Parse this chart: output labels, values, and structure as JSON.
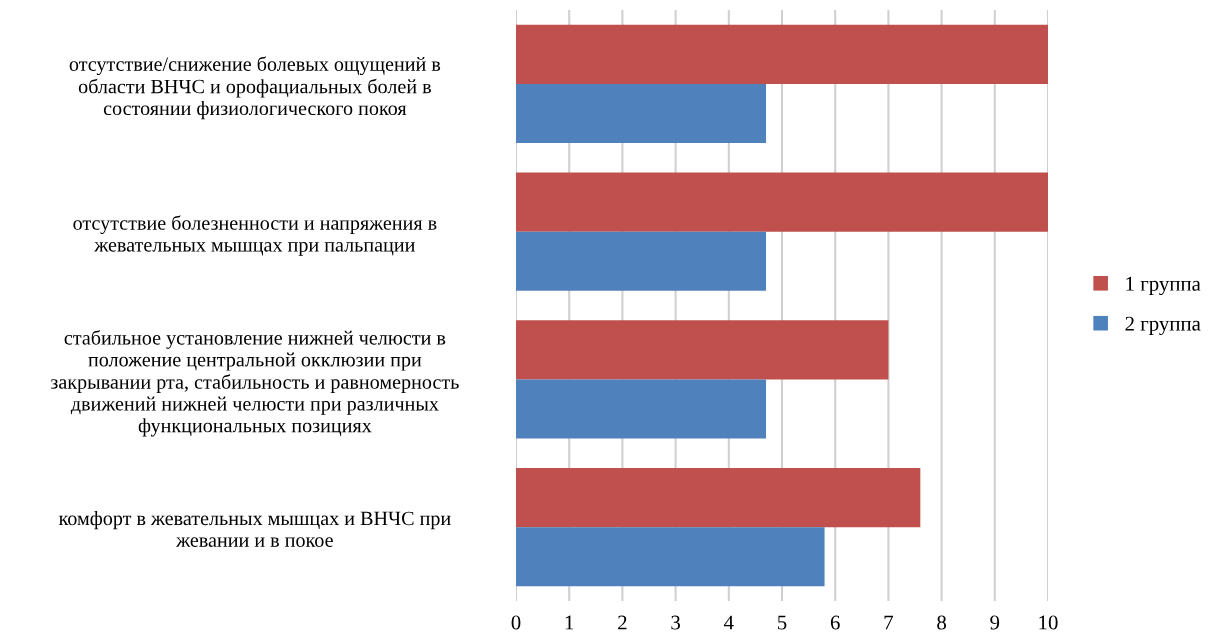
{
  "chart_data": {
    "type": "bar",
    "orientation": "horizontal",
    "categories": [
      "отсутствие/снижение болевых ощущений в\nобласти ВНЧС и орофациальных болей в\nсостоянии физиологического покоя",
      "отсутствие болезненности и напряжения в\nжевательных мышцах при пальпации",
      "стабильное установление нижней челюсти в\nположение центральной окклюзии при\nзакрывании рта, стабильность и равномерность\nдвижений нижней челюсти при различных\nфункциональных позициях",
      "комфорт в жевательных мышцах и ВНЧС при\nжевании и в покое"
    ],
    "series": [
      {
        "name": "1 группа",
        "color": "#c0504d",
        "values": [
          10,
          10,
          7.0,
          7.6
        ]
      },
      {
        "name": "2 группа",
        "color": "#4f81bd",
        "values": [
          4.7,
          4.7,
          4.7,
          5.8
        ]
      }
    ],
    "xlim": [
      0,
      10
    ],
    "xticks": [
      0,
      1,
      2,
      3,
      4,
      5,
      6,
      7,
      8,
      9,
      10
    ],
    "grid": "x",
    "legend": "right"
  }
}
